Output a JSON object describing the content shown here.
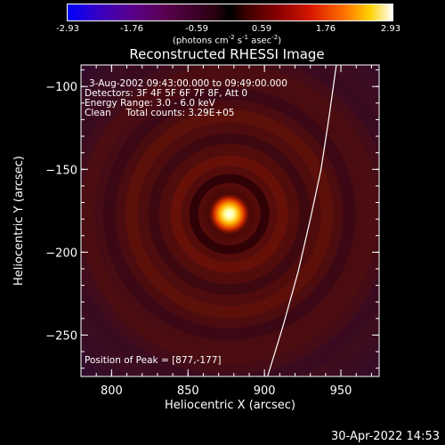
{
  "colorbar": {
    "ticks": [
      "-2.93",
      "-1.76",
      "-0.59",
      "0.59",
      "1.76",
      "2.93"
    ],
    "unit_text": "(photons cm",
    "unit_exp1": "-2",
    "unit_mid": " s",
    "unit_exp2": "-1",
    "unit_mid2": " asec",
    "unit_exp3": "-2",
    "unit_end": ")"
  },
  "chart_data": {
    "type": "heatmap",
    "title": "Reconstructed RHESSI Image",
    "xlabel": "Heliocentric X (arcsec)",
    "ylabel": "Heliocentric Y (arcsec)",
    "xlim": [
      780,
      975
    ],
    "ylim": [
      -275,
      -87
    ],
    "x_ticks": [
      800,
      850,
      900,
      950
    ],
    "y_ticks": [
      -100,
      -150,
      -200,
      -250
    ],
    "peak": {
      "x": 877,
      "y": -177
    },
    "clim": [
      -2.93,
      2.93
    ],
    "annotations": [
      "3-Aug-2002 09:43:00.000 to 09:49:00.000",
      "Detectors: 3F 4F 5F 6F 7F 8F, Att 0",
      "Energy Range: 3.0 - 6.0 keV",
      "Clean     Total counts: 3.29E+05"
    ],
    "peak_label": "Position of Peak = [877,-177]",
    "limb": [
      [
        902,
        -275
      ],
      [
        912,
        -245
      ],
      [
        922,
        -212
      ],
      [
        930,
        -180
      ],
      [
        937,
        -150
      ],
      [
        942,
        -120
      ],
      [
        947,
        -87
      ]
    ]
  },
  "footer": "30-Apr-2022 14:53"
}
